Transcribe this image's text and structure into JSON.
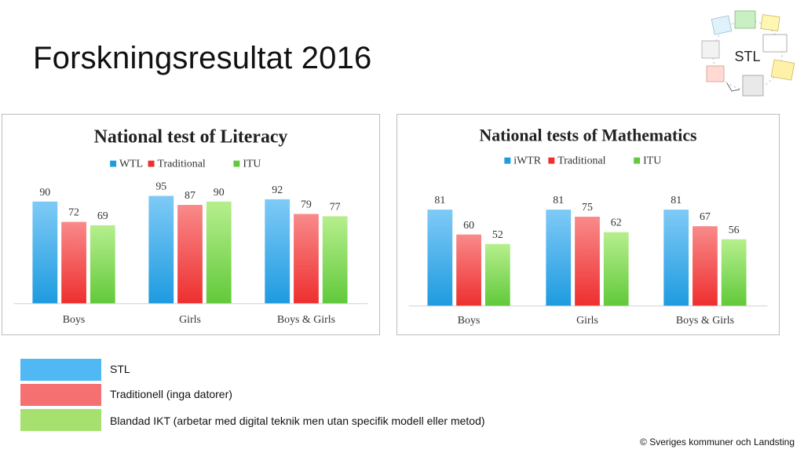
{
  "slide": {
    "title": "Forskningsresultat 2016",
    "logo_text": "STL",
    "footer": "© Sveriges kommuner och Landsting"
  },
  "colors": {
    "blue": "#4fb3f0",
    "red": "#f05a5a",
    "green": "#7ed957"
  },
  "chart_data": [
    {
      "type": "bar",
      "title": "National test of Literacy",
      "categories": [
        "Boys",
        "Girls",
        "Boys & Girls"
      ],
      "series": [
        {
          "name": "WTL",
          "color": "blue",
          "values": [
            90,
            95,
            92
          ]
        },
        {
          "name": "Traditional",
          "color": "red",
          "values": [
            72,
            87,
            79
          ]
        },
        {
          "name": "ITU",
          "color": "green",
          "values": [
            69,
            90,
            77
          ]
        }
      ],
      "legend": "top",
      "grid": false
    },
    {
      "type": "bar",
      "title": "National tests of Mathematics",
      "categories": [
        "Boys",
        "Girls",
        "Boys & Girls"
      ],
      "series": [
        {
          "name": "iWTR",
          "color": "blue",
          "values": [
            81,
            81,
            81
          ]
        },
        {
          "name": "Traditional",
          "color": "red",
          "values": [
            60,
            75,
            67
          ]
        },
        {
          "name": "ITU",
          "color": "green",
          "values": [
            52,
            62,
            56
          ]
        }
      ],
      "legend": "top",
      "grid": false
    }
  ],
  "legend": [
    {
      "color": "blue",
      "label": "STL"
    },
    {
      "color": "red",
      "label": "Traditionell (inga datorer)"
    },
    {
      "color": "green",
      "label": "Blandad IKT (arbetar med digital teknik men utan specifik modell eller metod)"
    }
  ]
}
